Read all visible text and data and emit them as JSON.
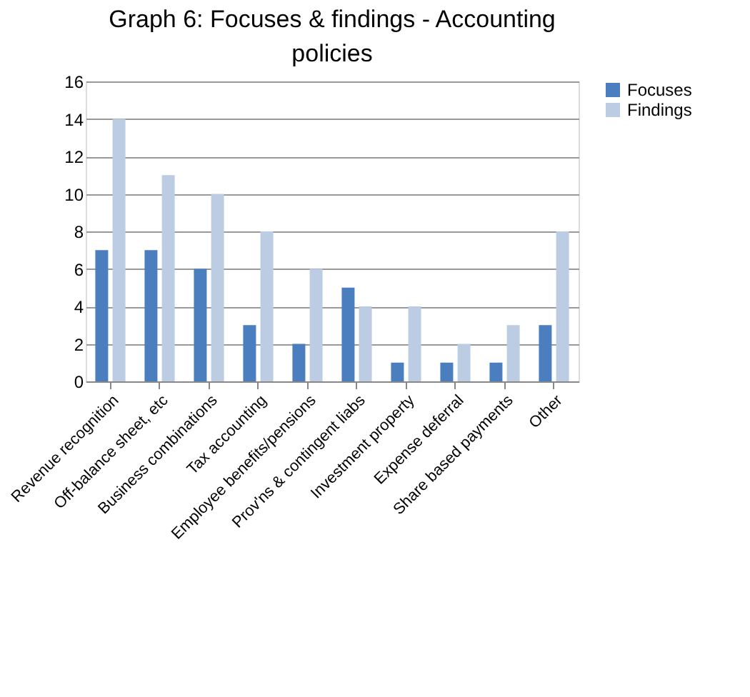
{
  "chart_data": {
    "type": "bar",
    "title": "Graph 6: Focuses & findings - Accounting policies",
    "categories": [
      "Revenue recognition",
      "Off-balance sheet, etc",
      "Business combinations",
      "Tax accounting",
      "Employee benefits/pensions",
      "Prov'ns & contingent liabs",
      "Investment property",
      "Expense deferral",
      "Share based payments",
      "Other"
    ],
    "series": [
      {
        "name": "Focuses",
        "color": "#4a7ebf",
        "values": [
          7,
          7,
          6,
          3,
          2,
          5,
          1,
          1,
          1,
          3
        ]
      },
      {
        "name": "Findings",
        "color": "#bccde3",
        "values": [
          14,
          11,
          10,
          8,
          6,
          4,
          4,
          2,
          3,
          8
        ]
      }
    ],
    "ylim": [
      0,
      16
    ],
    "yticks": [
      0,
      2,
      4,
      6,
      8,
      10,
      12,
      14,
      16
    ],
    "grid": "y",
    "legend": "right"
  }
}
